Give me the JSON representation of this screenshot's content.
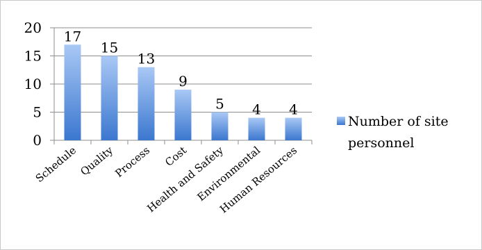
{
  "chart_data": {
    "type": "bar",
    "categories": [
      "Schedule",
      "Quality",
      "Process",
      "Cost",
      "Health and Safety",
      "Environmental",
      "Human Resources"
    ],
    "series": [
      {
        "name": "Number of site personnel",
        "values": [
          17,
          15,
          13,
          9,
          5,
          4,
          4
        ]
      }
    ],
    "data_labels": [
      "17",
      "15",
      "13",
      "9",
      "5",
      "4",
      "4"
    ],
    "ylim": [
      0,
      20
    ],
    "yticks": [
      "0",
      "5",
      "10",
      "15",
      "20"
    ],
    "grid": true,
    "legend": {
      "position": "right",
      "labels": [
        "Number of site",
        "personnel"
      ]
    },
    "colors": {
      "bar_top": "#a9c8f5",
      "bar_bottom": "#3b77cf",
      "grid": "#8c8c8c"
    }
  }
}
